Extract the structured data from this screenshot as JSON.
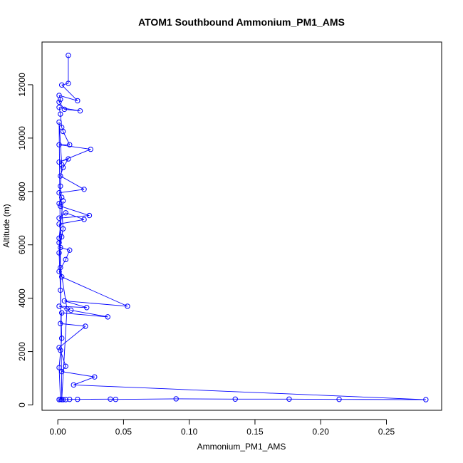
{
  "chart_data": {
    "type": "line",
    "title": "ATOM1 Southbound Ammonium_PM1_AMS",
    "xlabel": "Ammonium_PM1_AMS",
    "ylabel": "Altitude (m)",
    "xlim": [
      -0.012,
      0.292
    ],
    "ylim": [
      -200,
      13600
    ],
    "xticks": [
      "0.00",
      "0.05",
      "0.10",
      "0.15",
      "0.20",
      "0.25"
    ],
    "yticks": [
      "0",
      "2000",
      "4000",
      "6000",
      "8000",
      "10000",
      "12000"
    ],
    "series": [
      {
        "color": "#0000ff",
        "marker": "open-circle",
        "points": [
          [
            0.008,
            13100
          ],
          [
            0.008,
            12050
          ],
          [
            0.003,
            11990
          ],
          [
            0.015,
            11400
          ],
          [
            0.001,
            11600
          ],
          [
            0.002,
            11450
          ],
          [
            0.001,
            11350
          ],
          [
            0.005,
            11080
          ],
          [
            0.017,
            11020
          ],
          [
            0.001,
            11150
          ],
          [
            0.002,
            10900
          ],
          [
            0.003,
            10400
          ],
          [
            0.004,
            10250
          ],
          [
            0.009,
            9750
          ],
          [
            0.001,
            9750
          ],
          [
            0.025,
            9580
          ],
          [
            0.001,
            9100
          ],
          [
            0.008,
            9220
          ],
          [
            0.004,
            8900
          ],
          [
            0.002,
            8580
          ],
          [
            0.02,
            8080
          ],
          [
            0.001,
            7950
          ],
          [
            0.003,
            7780
          ],
          [
            0.001,
            7550
          ],
          [
            0.002,
            7450
          ],
          [
            0.024,
            7100
          ],
          [
            0.001,
            7000
          ],
          [
            0.006,
            7200
          ],
          [
            0.02,
            6950
          ],
          [
            0.001,
            6780
          ],
          [
            0.003,
            6300
          ],
          [
            0.001,
            6080
          ],
          [
            0.002,
            5900
          ],
          [
            0.009,
            5800
          ],
          [
            0.006,
            5450
          ],
          [
            0.001,
            5000
          ],
          [
            0.003,
            4800
          ],
          [
            0.053,
            3700
          ],
          [
            0.005,
            3900
          ],
          [
            0.022,
            3650
          ],
          [
            0.001,
            3700
          ],
          [
            0.01,
            3550
          ],
          [
            0.038,
            3300
          ],
          [
            0.003,
            3450
          ],
          [
            0.002,
            3050
          ],
          [
            0.021,
            2950
          ],
          [
            0.001,
            2150
          ],
          [
            0.002,
            2050
          ],
          [
            0.006,
            1450
          ],
          [
            0.003,
            1250
          ],
          [
            0.028,
            1050
          ],
          [
            0.012,
            750
          ],
          [
            0.28,
            200
          ],
          [
            0.214,
            210
          ],
          [
            0.176,
            220
          ],
          [
            0.135,
            220
          ],
          [
            0.09,
            230
          ],
          [
            0.044,
            210
          ],
          [
            0.04,
            220
          ],
          [
            0.015,
            210
          ],
          [
            0.009,
            210
          ],
          [
            0.006,
            200
          ],
          [
            0.004,
            200
          ],
          [
            0.001,
            200
          ],
          [
            0.002,
            210
          ],
          [
            0.001,
            1400
          ],
          [
            0.003,
            2500
          ],
          [
            0.002,
            4300
          ],
          [
            0.001,
            5700
          ],
          [
            0.004,
            6600
          ],
          [
            0.002,
            8200
          ],
          [
            0.003,
            9000
          ],
          [
            0.001,
            10600
          ],
          [
            0.003,
            200
          ],
          [
            0.007,
            3600
          ],
          [
            0.002,
            5150
          ],
          [
            0.001,
            6250
          ],
          [
            0.004,
            7650
          ]
        ]
      }
    ]
  }
}
